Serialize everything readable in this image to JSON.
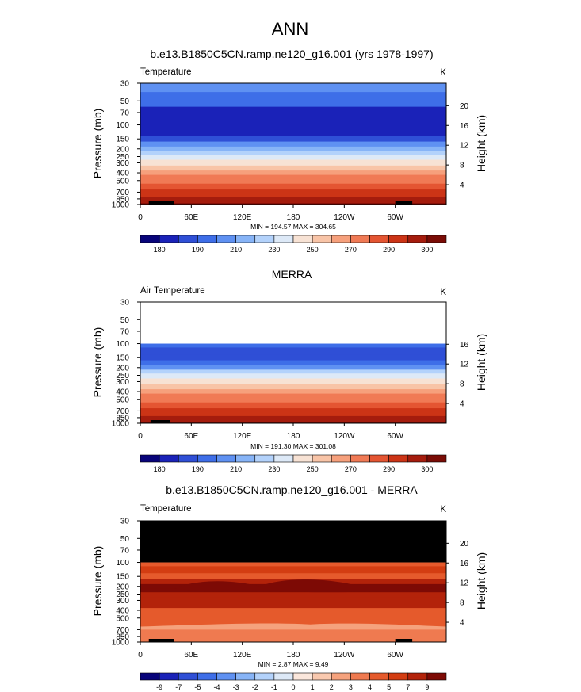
{
  "figure": {
    "title": "ANN"
  },
  "colors": {
    "abs_palette": [
      "#08047a",
      "#1a22b8",
      "#2f4fd6",
      "#3e6ee8",
      "#5f91f2",
      "#87b4f7",
      "#b3d2fb",
      "#dde9f7",
      "#f7e2d4",
      "#f8c4a7",
      "#f6a07c",
      "#f07a55",
      "#e45532",
      "#cc3416",
      "#a51c0d",
      "#7a0c06"
    ],
    "diff_palette": [
      "#08047a",
      "#1a22b8",
      "#2f4fd6",
      "#3e6ee8",
      "#5f91f2",
      "#87b4f7",
      "#b3d2fb",
      "#dde9f7",
      "#fbe7dc",
      "#f9c9af",
      "#f5a27d",
      "#ef7a50",
      "#e55a2c",
      "#d33d12",
      "#b3230a",
      "#7d0a05"
    ],
    "missing": "#000000",
    "terrain": "#000000"
  },
  "chart_data": [
    {
      "type": "heatmap",
      "title": "b.e13.B1850C5CN.ramp.ne120_g16.001 (yrs 1978-1997)",
      "left_label": "Temperature",
      "units": "K",
      "ylabel": "Pressure (mb)",
      "y2label": "Height (km)",
      "xlabel": "",
      "x_ticks": [
        "0",
        "60E",
        "120E",
        "180",
        "120W",
        "60W"
      ],
      "x_tick_lons": [
        0,
        60,
        120,
        180,
        240,
        300
      ],
      "xlim": [
        0,
        360
      ],
      "y_ticks": [
        30,
        50,
        70,
        100,
        150,
        200,
        250,
        300,
        400,
        500,
        700,
        850,
        1000
      ],
      "ylim": [
        30,
        1000
      ],
      "height_ticks": [
        4,
        8,
        12,
        16,
        20
      ],
      "min_max_text": "MIN = 194.57  MAX = 304.65",
      "colorbar": {
        "palette": "abs",
        "labels": [
          "180",
          "190",
          "210",
          "230",
          "250",
          "270",
          "290",
          "300"
        ]
      },
      "missing_above": null,
      "field": {
        "kind": "abs",
        "pressure_levels": [
          30,
          50,
          70,
          100,
          125,
          150,
          175,
          200,
          225,
          250,
          300,
          350,
          400,
          450,
          500,
          600,
          700,
          775,
          850,
          925,
          1000
        ],
        "level_index": [
          4,
          3,
          1,
          1,
          1,
          2,
          4,
          5,
          6,
          7,
          8,
          9,
          10,
          11,
          11,
          12,
          13,
          13,
          14,
          14,
          15
        ]
      },
      "terrain_lons": [
        [
          10,
          40
        ],
        [
          26,
          34
        ],
        [
          300,
          320
        ]
      ]
    },
    {
      "type": "heatmap",
      "title": "MERRA",
      "left_label": "Air Temperature",
      "units": "K",
      "ylabel": "Pressure (mb)",
      "y2label": "Height (km)",
      "xlabel": "",
      "x_ticks": [
        "0",
        "60E",
        "120E",
        "180",
        "120W",
        "60W"
      ],
      "x_tick_lons": [
        0,
        60,
        120,
        180,
        240,
        300
      ],
      "xlim": [
        0,
        360
      ],
      "y_ticks": [
        30,
        50,
        70,
        100,
        150,
        200,
        250,
        300,
        400,
        500,
        700,
        850,
        1000
      ],
      "ylim": [
        30,
        1000
      ],
      "height_ticks": [
        4,
        8,
        12,
        16
      ],
      "min_max_text": "MIN = 191.30  MAX = 301.08",
      "colorbar": {
        "palette": "abs",
        "labels": [
          "180",
          "190",
          "210",
          "230",
          "250",
          "270",
          "290",
          "300"
        ]
      },
      "missing_above": 100,
      "missing_color": "#ffffff",
      "field": {
        "kind": "abs",
        "pressure_levels": [
          100,
          125,
          150,
          175,
          200,
          225,
          250,
          300,
          350,
          400,
          450,
          500,
          600,
          700,
          775,
          850,
          925,
          1000
        ],
        "level_index": [
          3,
          2,
          2,
          3,
          4,
          6,
          7,
          8,
          9,
          10,
          11,
          11,
          12,
          13,
          13,
          14,
          14,
          15
        ]
      },
      "terrain_lons": [
        [
          12,
          35
        ]
      ]
    },
    {
      "type": "heatmap",
      "title": "b.e13.B1850C5CN.ramp.ne120_g16.001 - MERRA",
      "left_label": "Temperature",
      "units": "K",
      "ylabel": "Pressure (mb)",
      "y2label": "Height (km)",
      "xlabel": "",
      "x_ticks": [
        "0",
        "60E",
        "120E",
        "180",
        "120W",
        "60W"
      ],
      "x_tick_lons": [
        0,
        60,
        120,
        180,
        240,
        300
      ],
      "xlim": [
        0,
        360
      ],
      "y_ticks": [
        30,
        50,
        70,
        100,
        150,
        200,
        250,
        300,
        400,
        500,
        700,
        850,
        1000
      ],
      "ylim": [
        30,
        1000
      ],
      "height_ticks": [
        4,
        8,
        12,
        16,
        20
      ],
      "min_max_text": "MIN =  2.87  MAX =  9.49",
      "colorbar": {
        "palette": "diff",
        "labels": [
          "-9",
          "-7",
          "-5",
          "-4",
          "-3",
          "-2",
          "-1",
          "0",
          "1",
          "2",
          "3",
          "4",
          "5",
          "7",
          "9"
        ]
      },
      "missing_above": 100,
      "missing_color": "#000000",
      "field": {
        "kind": "diff",
        "pressure_levels": [
          100,
          125,
          150,
          175,
          200,
          225,
          250,
          300,
          350,
          400,
          450,
          500,
          600,
          700,
          775,
          850,
          925,
          1000
        ],
        "level_index": [
          12,
          13,
          12,
          14,
          15,
          15,
          14,
          14,
          14,
          12,
          12,
          12,
          12,
          11,
          11,
          11,
          11,
          11
        ]
      },
      "terrain_lons": [
        [
          10,
          40
        ],
        [
          26,
          34
        ],
        [
          300,
          320
        ]
      ]
    }
  ]
}
